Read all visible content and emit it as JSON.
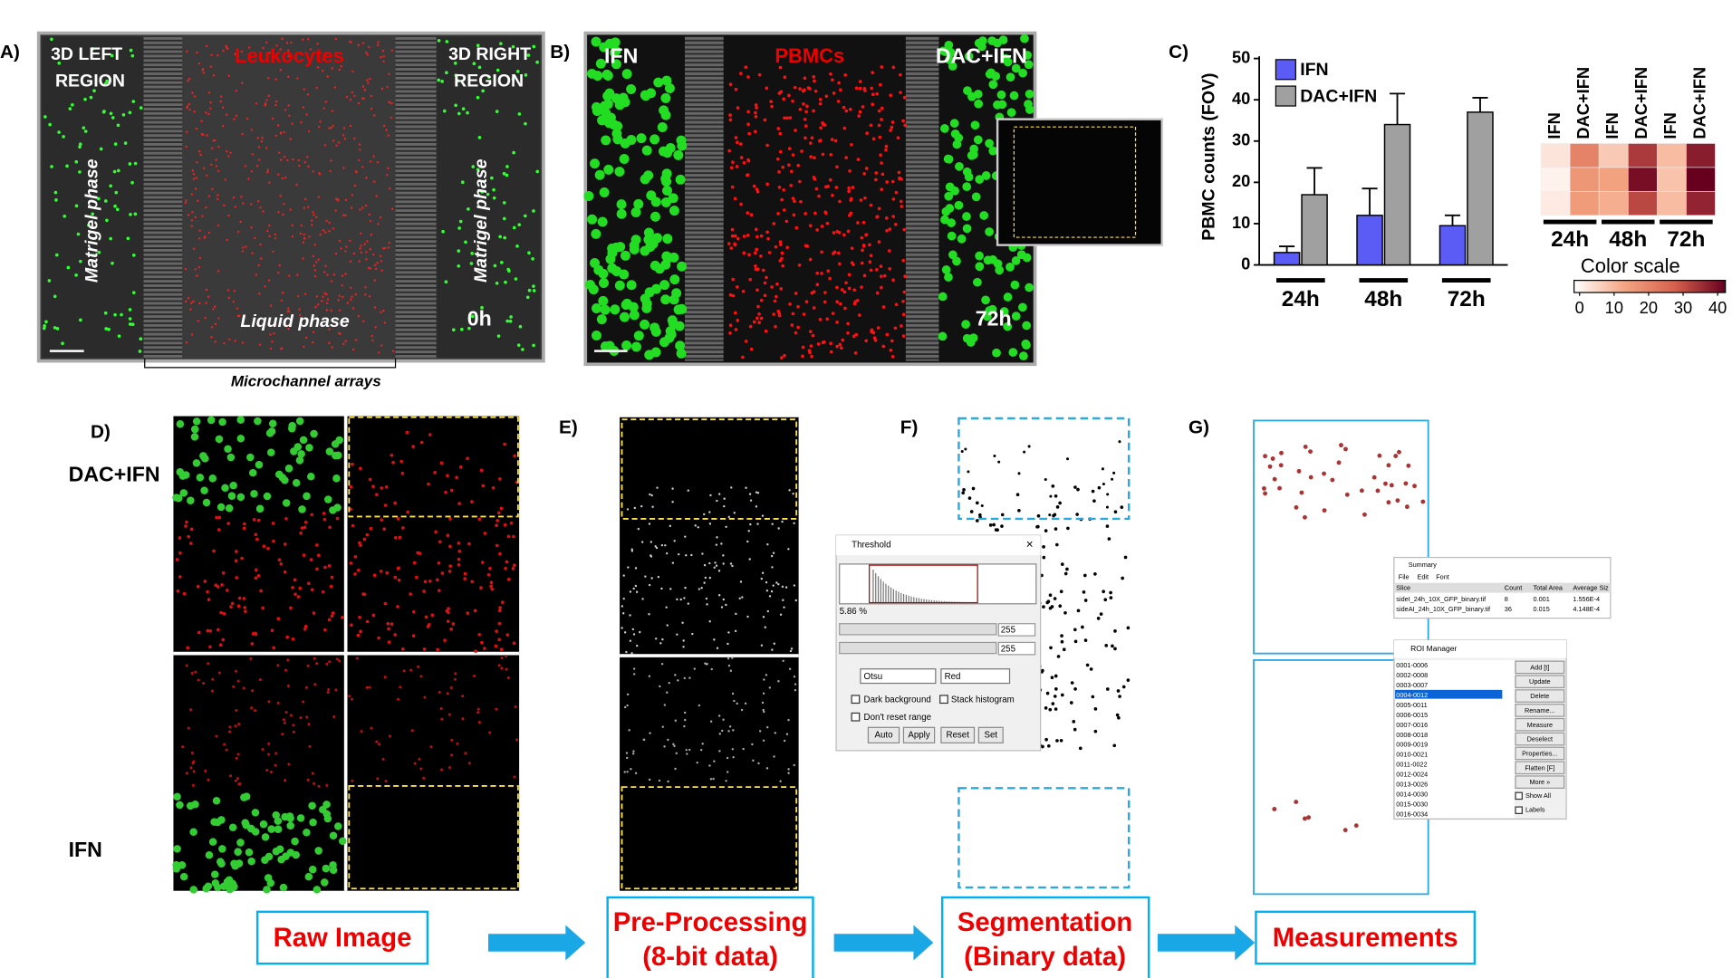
{
  "figure": {
    "panel_labels": [
      "A)",
      "B)",
      "C)",
      "D)",
      "E)",
      "F)",
      "G)"
    ],
    "panel_a": {
      "left_region": [
        "3D LEFT",
        "REGION"
      ],
      "title": "Leukocytes",
      "right_region": [
        "3D RIGHT",
        "REGION"
      ],
      "left_phase": "Matrigel phase",
      "right_phase": "Matrigel phase",
      "liquid": "Liquid phase",
      "time": "0h",
      "channels": "Microchannel arrays"
    },
    "panel_b": {
      "left": "IFN",
      "title": "PBMCs",
      "right": "DAC+IFN",
      "time": "72h"
    },
    "panel_d": {
      "top": "DAC+IFN",
      "bottom": "IFN"
    },
    "threshold": {
      "title": "Threshold",
      "percent": "5.86 %",
      "min": "255",
      "max": "255",
      "method": "Otsu",
      "mode": "Red",
      "options": [
        "Dark background",
        "Stack histogram",
        "Don't reset range"
      ],
      "buttons": [
        "Auto",
        "Apply",
        "Reset",
        "Set"
      ]
    },
    "summary": {
      "title": "Summary",
      "menu": [
        "File",
        "Edit",
        "Font"
      ],
      "header": [
        "Slice",
        "Count",
        "Total Area",
        "Average Siz"
      ],
      "rows": [
        [
          "sideI_24h_10X_GFP_binary.tif",
          "8",
          "0.001",
          "1.556E-4"
        ],
        [
          "sideAI_24h_10X_GFP_binary.tif",
          "36",
          "0.015",
          "4.148E-4"
        ]
      ]
    },
    "roi_manager": {
      "title": "ROI Manager",
      "items": [
        "0001-0006",
        "0002-0008",
        "0003-0007",
        "0004-0012",
        "0005-0011",
        "0006-0015",
        "0007-0016",
        "0008-0018",
        "0009-0019",
        "0010-0021",
        "0011-0022",
        "0012-0024",
        "0013-0026",
        "0014-0030",
        "0015-0030",
        "0016-0034"
      ],
      "buttons": [
        "Add [t]",
        "Update",
        "Delete",
        "Rename...",
        "Measure",
        "Deselect",
        "Properties...",
        "Flatten [F]",
        "More »"
      ],
      "checks": [
        "Show All",
        "Labels"
      ]
    },
    "steps": [
      [
        "Raw Image"
      ],
      [
        "Pre-Processing",
        "(8-bit data)"
      ],
      [
        "Segmentation",
        "(Binary data)"
      ],
      [
        "Measurements"
      ]
    ]
  },
  "chart_data": [
    {
      "type": "bar",
      "y_label": "PBMC counts (FOV)",
      "categories": [
        "24h",
        "48h",
        "72h"
      ],
      "series": [
        {
          "name": "IFN",
          "color": "#5b5bf5",
          "values": [
            3,
            12,
            9.5
          ],
          "errors": [
            1.5,
            6.5,
            2.5
          ]
        },
        {
          "name": "DAC+IFN",
          "color": "#a0a0a0",
          "values": [
            17,
            34,
            37
          ],
          "errors": [
            6.5,
            7.5,
            3.5
          ]
        }
      ],
      "ylim": [
        0,
        50
      ],
      "yticks": [
        0,
        10,
        20,
        30,
        40,
        50
      ]
    },
    {
      "type": "heatmap",
      "columns": [
        "IFN",
        "DAC+IFN",
        "IFN",
        "DAC+IFN",
        "IFN",
        "DAC+IFN"
      ],
      "groups": [
        "24h",
        "48h",
        "72h"
      ],
      "values": [
        [
          4,
          20,
          8,
          32,
          10,
          36
        ],
        [
          2,
          16,
          14,
          38,
          9,
          40
        ],
        [
          3,
          15,
          12,
          30,
          10,
          35
        ]
      ],
      "colorbar_label": "Color scale",
      "zlim": [
        0,
        40
      ],
      "zticks": [
        0,
        10,
        20,
        30,
        40
      ],
      "colors": [
        "#ffffff",
        "#f4a582",
        "#d6604d",
        "#67001f"
      ]
    }
  ]
}
